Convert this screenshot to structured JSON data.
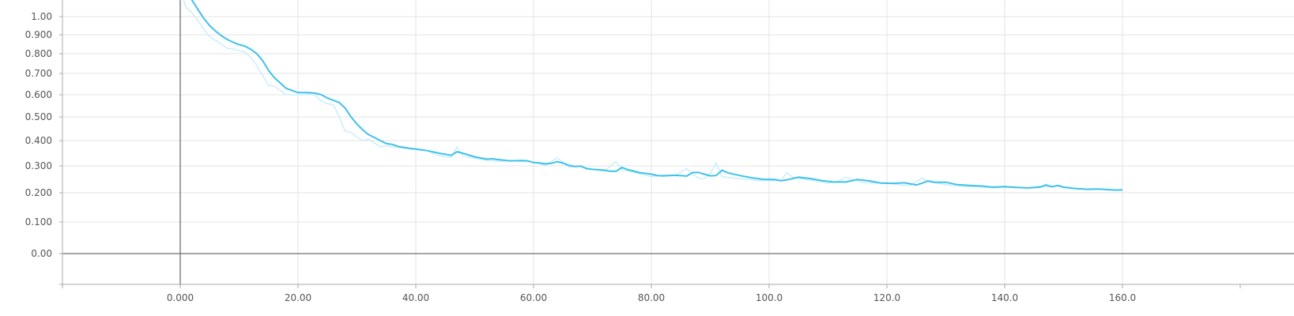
{
  "chart_data": {
    "type": "line",
    "title": "",
    "xlabel": "",
    "ylabel": "",
    "xlim": [
      -20,
      180
    ],
    "y_scale": "symlog-like (compressed toward the top)",
    "grid": true,
    "legend": "none",
    "x_ticks": [
      {
        "value": 0,
        "label": "0.000"
      },
      {
        "value": 20,
        "label": "20.00"
      },
      {
        "value": 40,
        "label": "40.00"
      },
      {
        "value": 60,
        "label": "60.00"
      },
      {
        "value": 80,
        "label": "80.00"
      },
      {
        "value": 100,
        "label": "100.0"
      },
      {
        "value": 120,
        "label": "120.0"
      },
      {
        "value": 140,
        "label": "140.0"
      },
      {
        "value": 160,
        "label": "160.0"
      }
    ],
    "y_ticks": [
      {
        "value": 0.0,
        "label": "0.00"
      },
      {
        "value": 0.1,
        "label": "0.100"
      },
      {
        "value": 0.2,
        "label": "0.200"
      },
      {
        "value": 0.3,
        "label": "0.300"
      },
      {
        "value": 0.4,
        "label": "0.400"
      },
      {
        "value": 0.5,
        "label": "0.500"
      },
      {
        "value": 0.6,
        "label": "0.600"
      },
      {
        "value": 0.7,
        "label": "0.700"
      },
      {
        "value": 0.8,
        "label": "0.800"
      },
      {
        "value": 0.9,
        "label": "0.900"
      },
      {
        "value": 1.0,
        "label": "1.00"
      }
    ],
    "colors": {
      "smoothed": "#3fc1ea",
      "raw": "#c3ecf7",
      "zero_line": "#6f6f6f",
      "grid": "#e3e3e3"
    },
    "series": [
      {
        "style": "smoothed",
        "x": [
          0,
          2,
          3,
          4,
          5,
          6,
          7,
          8,
          9,
          10,
          11,
          12,
          13,
          14,
          15,
          16,
          17,
          18,
          19,
          20,
          21,
          22,
          23,
          24,
          25,
          26,
          27,
          28,
          29,
          30,
          31,
          32,
          33,
          34,
          35,
          36,
          37,
          38,
          39,
          40,
          42,
          44,
          46,
          47,
          48,
          50,
          52,
          53,
          54,
          56,
          58,
          59,
          60,
          61,
          62,
          63,
          64,
          65,
          66,
          67,
          68,
          69,
          70,
          72,
          73,
          74,
          75,
          76,
          77,
          78,
          80,
          81,
          82,
          84,
          85,
          86,
          87,
          88,
          89,
          90,
          91,
          92,
          93,
          95,
          97,
          99,
          101,
          102,
          103,
          105,
          107,
          109,
          111,
          113,
          115,
          117,
          119,
          121,
          123,
          125,
          126,
          127,
          128,
          130,
          132,
          134,
          136,
          138,
          140,
          142,
          144,
          146,
          147,
          148,
          149,
          150,
          152,
          154,
          156,
          158,
          159,
          160
        ],
        "values": [
          1.25,
          1.09,
          1.04,
          0.99,
          0.95,
          0.92,
          0.895,
          0.875,
          0.86,
          0.848,
          0.84,
          0.823,
          0.8,
          0.765,
          0.715,
          0.68,
          0.655,
          0.63,
          0.62,
          0.61,
          0.61,
          0.61,
          0.607,
          0.6,
          0.585,
          0.575,
          0.565,
          0.54,
          0.5,
          0.47,
          0.445,
          0.425,
          0.413,
          0.4,
          0.388,
          0.385,
          0.377,
          0.373,
          0.369,
          0.367,
          0.36,
          0.35,
          0.342,
          0.356,
          0.35,
          0.336,
          0.327,
          0.328,
          0.325,
          0.32,
          0.321,
          0.32,
          0.313,
          0.312,
          0.308,
          0.31,
          0.317,
          0.311,
          0.302,
          0.298,
          0.299,
          0.29,
          0.287,
          0.284,
          0.28,
          0.28,
          0.294,
          0.286,
          0.281,
          0.275,
          0.269,
          0.264,
          0.263,
          0.265,
          0.264,
          0.262,
          0.275,
          0.276,
          0.269,
          0.263,
          0.264,
          0.284,
          0.274,
          0.264,
          0.256,
          0.25,
          0.249,
          0.245,
          0.248,
          0.258,
          0.253,
          0.245,
          0.24,
          0.24,
          0.249,
          0.244,
          0.236,
          0.235,
          0.237,
          0.229,
          0.236,
          0.244,
          0.239,
          0.239,
          0.23,
          0.227,
          0.225,
          0.221,
          0.223,
          0.22,
          0.218,
          0.221,
          0.229,
          0.222,
          0.227,
          0.221,
          0.216,
          0.213,
          0.214,
          0.211,
          0.21,
          0.211
        ]
      },
      {
        "style": "raw",
        "x": [
          0,
          1,
          2,
          3,
          4,
          5,
          6,
          7,
          8,
          9,
          10,
          11,
          12,
          13,
          14,
          15,
          16,
          17,
          18,
          19,
          20,
          21,
          22,
          23,
          24,
          25,
          26,
          27,
          28,
          29,
          30,
          31,
          32,
          33,
          34,
          35,
          36,
          38,
          40,
          42,
          44,
          46,
          47,
          48,
          50,
          52,
          54,
          56,
          58,
          60,
          62,
          64,
          66,
          68,
          70,
          72,
          74,
          75,
          76,
          78,
          80,
          82,
          84,
          86,
          87,
          88,
          89,
          90,
          91,
          92,
          94,
          96,
          98,
          100,
          102,
          103,
          104,
          106,
          108,
          110,
          112,
          113,
          114,
          116,
          118,
          120,
          122,
          124,
          126,
          127,
          128,
          130,
          132,
          134,
          136,
          138,
          140,
          142,
          144,
          146,
          147,
          148,
          149,
          150,
          152,
          154,
          156,
          158,
          160
        ],
        "values": [
          1.15,
          1.05,
          1.02,
          0.98,
          0.93,
          0.89,
          0.87,
          0.85,
          0.828,
          0.825,
          0.815,
          0.81,
          0.78,
          0.74,
          0.69,
          0.645,
          0.64,
          0.62,
          0.6,
          0.6,
          0.6,
          0.6,
          0.605,
          0.595,
          0.57,
          0.56,
          0.555,
          0.5,
          0.44,
          0.435,
          0.415,
          0.4,
          0.405,
          0.39,
          0.375,
          0.38,
          0.375,
          0.37,
          0.365,
          0.36,
          0.34,
          0.333,
          0.375,
          0.34,
          0.33,
          0.322,
          0.318,
          0.32,
          0.318,
          0.315,
          0.302,
          0.332,
          0.296,
          0.298,
          0.287,
          0.28,
          0.318,
          0.283,
          0.282,
          0.27,
          0.26,
          0.266,
          0.265,
          0.29,
          0.27,
          0.255,
          0.252,
          0.27,
          0.312,
          0.26,
          0.255,
          0.25,
          0.245,
          0.245,
          0.245,
          0.275,
          0.258,
          0.25,
          0.244,
          0.235,
          0.245,
          0.258,
          0.25,
          0.238,
          0.236,
          0.238,
          0.229,
          0.228,
          0.255,
          0.24,
          0.238,
          0.23,
          0.226,
          0.222,
          0.222,
          0.218,
          0.22,
          0.22,
          0.218,
          0.225,
          0.222,
          0.224,
          0.226,
          0.219,
          0.215,
          0.212,
          0.213,
          0.212,
          0.21
        ]
      }
    ]
  }
}
